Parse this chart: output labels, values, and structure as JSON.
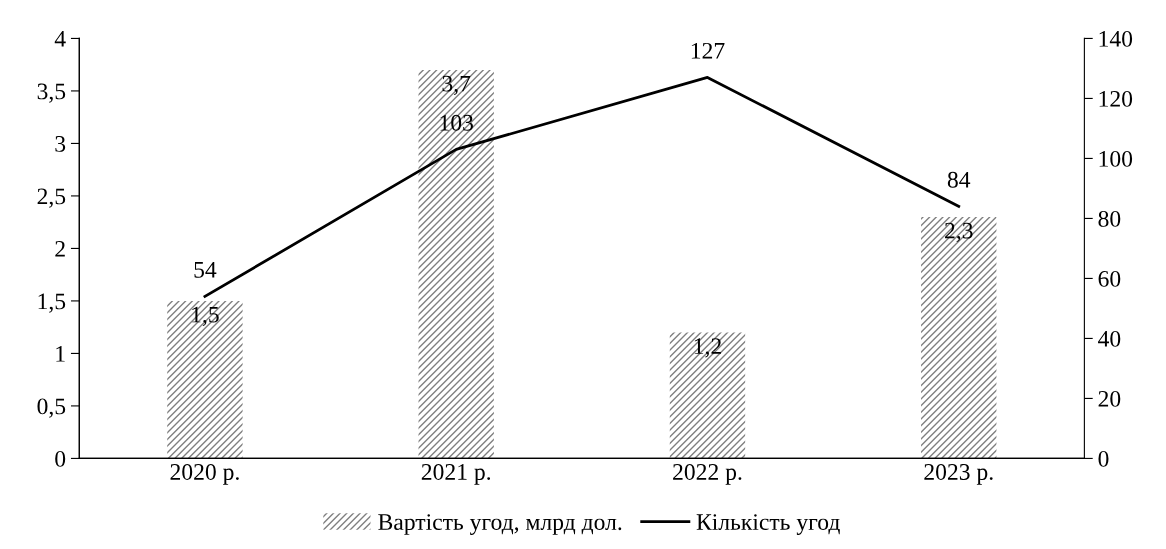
{
  "chart_data": {
    "type": "bar",
    "categories": [
      "2020 р.",
      "2021 р.",
      "2022 р.",
      "2023 р."
    ],
    "series": [
      {
        "name": "Вартість угод, млрд дол.",
        "color": "#7f7f7f",
        "values": [
          1.5,
          3.7,
          1.2,
          2.3
        ],
        "value_labels": [
          "1,5",
          "3,7",
          "1,2",
          "2,3"
        ]
      },
      {
        "name": "Кількість угод",
        "type": "line",
        "axis": "y2",
        "color": "#000000",
        "values": [
          54,
          103,
          127,
          84
        ],
        "value_labels": [
          "54",
          "103",
          "127",
          "84"
        ]
      }
    ],
    "ylim": [
      0,
      4
    ],
    "yticks": [
      0,
      {
        "value": 0.5,
        "label": "0,5"
      },
      1,
      {
        "value": 1.5,
        "label": "1,5"
      },
      2,
      {
        "value": 2.5,
        "label": "2,5"
      },
      3,
      {
        "value": 3.5,
        "label": "3,5"
      },
      4
    ],
    "y2lim": [
      0,
      140
    ],
    "y2ticks": [
      0,
      20,
      40,
      60,
      80,
      100,
      120,
      140
    ],
    "grid": false,
    "legend": "bottom",
    "marker": "none",
    "line_style": "solid"
  }
}
